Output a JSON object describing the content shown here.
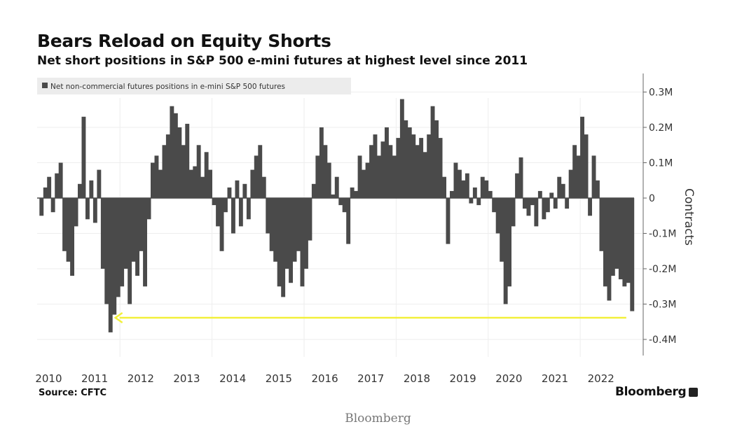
{
  "chart_data": {
    "type": "bar",
    "title": "Bears Reload on Equity Shorts",
    "subtitle": "Net short positions in S&P 500 e-mini futures at highest level since 2011",
    "legend": {
      "label": "Net non-commercial futures positions in e-mini S&P 500 futures",
      "placement": "top-left"
    },
    "ylabel": "Contracts",
    "ylim": [
      -450000,
      350000
    ],
    "y_ticks": [
      {
        "value": 300000,
        "label": "0.3M"
      },
      {
        "value": 200000,
        "label": "0.2M"
      },
      {
        "value": 100000,
        "label": "0.1M"
      },
      {
        "value": 0,
        "label": "0"
      },
      {
        "value": -100000,
        "label": "-0.1M"
      },
      {
        "value": -200000,
        "label": "-0.2M"
      },
      {
        "value": -300000,
        "label": "-0.3M"
      },
      {
        "value": -400000,
        "label": "-0.4M"
      }
    ],
    "x_ticks": [
      "2010",
      "2011",
      "2012",
      "2013",
      "2014",
      "2015",
      "2016",
      "2017",
      "2018",
      "2019",
      "2020",
      "2021",
      "2022"
    ],
    "x_start": 2010.25,
    "x_step_years": 0.083333,
    "values_thousands": [
      -50,
      30,
      60,
      -40,
      70,
      100,
      -150,
      -180,
      -220,
      -80,
      40,
      230,
      -60,
      50,
      -70,
      80,
      -200,
      -300,
      -380,
      -330,
      -280,
      -250,
      -200,
      -300,
      -180,
      -220,
      -150,
      -250,
      -60,
      100,
      120,
      80,
      150,
      180,
      260,
      240,
      200,
      150,
      210,
      80,
      90,
      150,
      60,
      130,
      80,
      -20,
      -80,
      -150,
      -40,
      30,
      -100,
      50,
      -80,
      40,
      -60,
      80,
      120,
      150,
      60,
      -100,
      -150,
      -180,
      -250,
      -280,
      -200,
      -240,
      -180,
      -150,
      -250,
      -200,
      -120,
      40,
      120,
      200,
      150,
      100,
      10,
      60,
      -20,
      -40,
      -130,
      30,
      20,
      120,
      80,
      100,
      150,
      180,
      120,
      160,
      200,
      150,
      120,
      170,
      280,
      220,
      200,
      180,
      150,
      170,
      130,
      180,
      260,
      220,
      170,
      60,
      -130,
      20,
      100,
      80,
      50,
      70,
      -15,
      30,
      -20,
      60,
      50,
      20,
      -40,
      -100,
      -180,
      -300,
      -250,
      -80,
      70,
      115,
      -30,
      -50,
      -20,
      -80,
      20,
      -60,
      -40,
      15,
      -30,
      60,
      40,
      -30,
      80,
      150,
      120,
      230,
      180,
      -50,
      120,
      50,
      -150,
      -250,
      -290,
      -220,
      -200,
      -230,
      -250,
      -240,
      -320
    ],
    "annotation": {
      "type": "arrow",
      "color": "#f2f03a",
      "y_value": -340000,
      "from_x": 2023.0,
      "to_x": 2011.9
    },
    "bar_color": "#4a4a4a",
    "grid": true
  },
  "source": "Source: CFTC",
  "brand": "Bloomberg",
  "caption": "Bloomberg"
}
